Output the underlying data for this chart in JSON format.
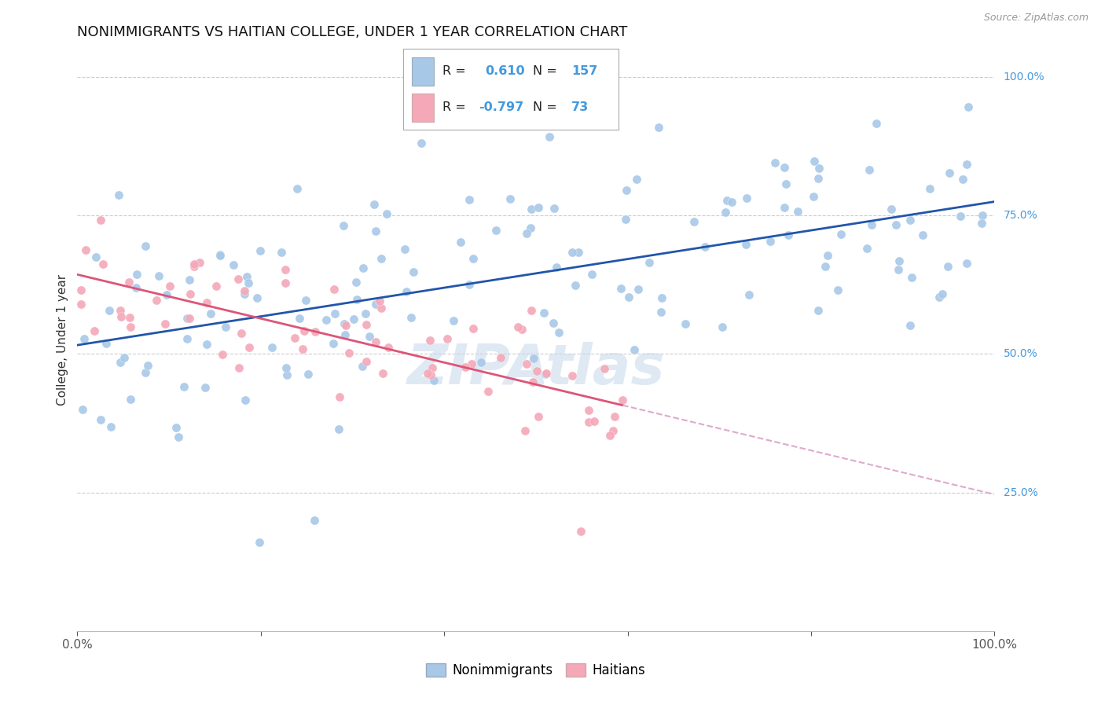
{
  "title": "NONIMMIGRANTS VS HAITIAN COLLEGE, UNDER 1 YEAR CORRELATION CHART",
  "source": "Source: ZipAtlas.com",
  "ylabel": "College, Under 1 year",
  "watermark": "ZIPAtlas",
  "blue_R": 0.61,
  "blue_N": 157,
  "pink_R": -0.797,
  "pink_N": 73,
  "blue_color": "#a8c8e8",
  "pink_color": "#f4a8b8",
  "blue_line_color": "#2255aa",
  "pink_line_color": "#dd5577",
  "pink_line_dash_color": "#ddaacc",
  "right_axis_color": "#4499dd",
  "background_color": "#ffffff",
  "grid_color": "#cccccc",
  "title_fontsize": 13,
  "blue_seed": 42,
  "pink_seed": 99,
  "legend_R1": "0.610",
  "legend_N1": "157",
  "legend_R2": "-0.797",
  "legend_N2": "73"
}
